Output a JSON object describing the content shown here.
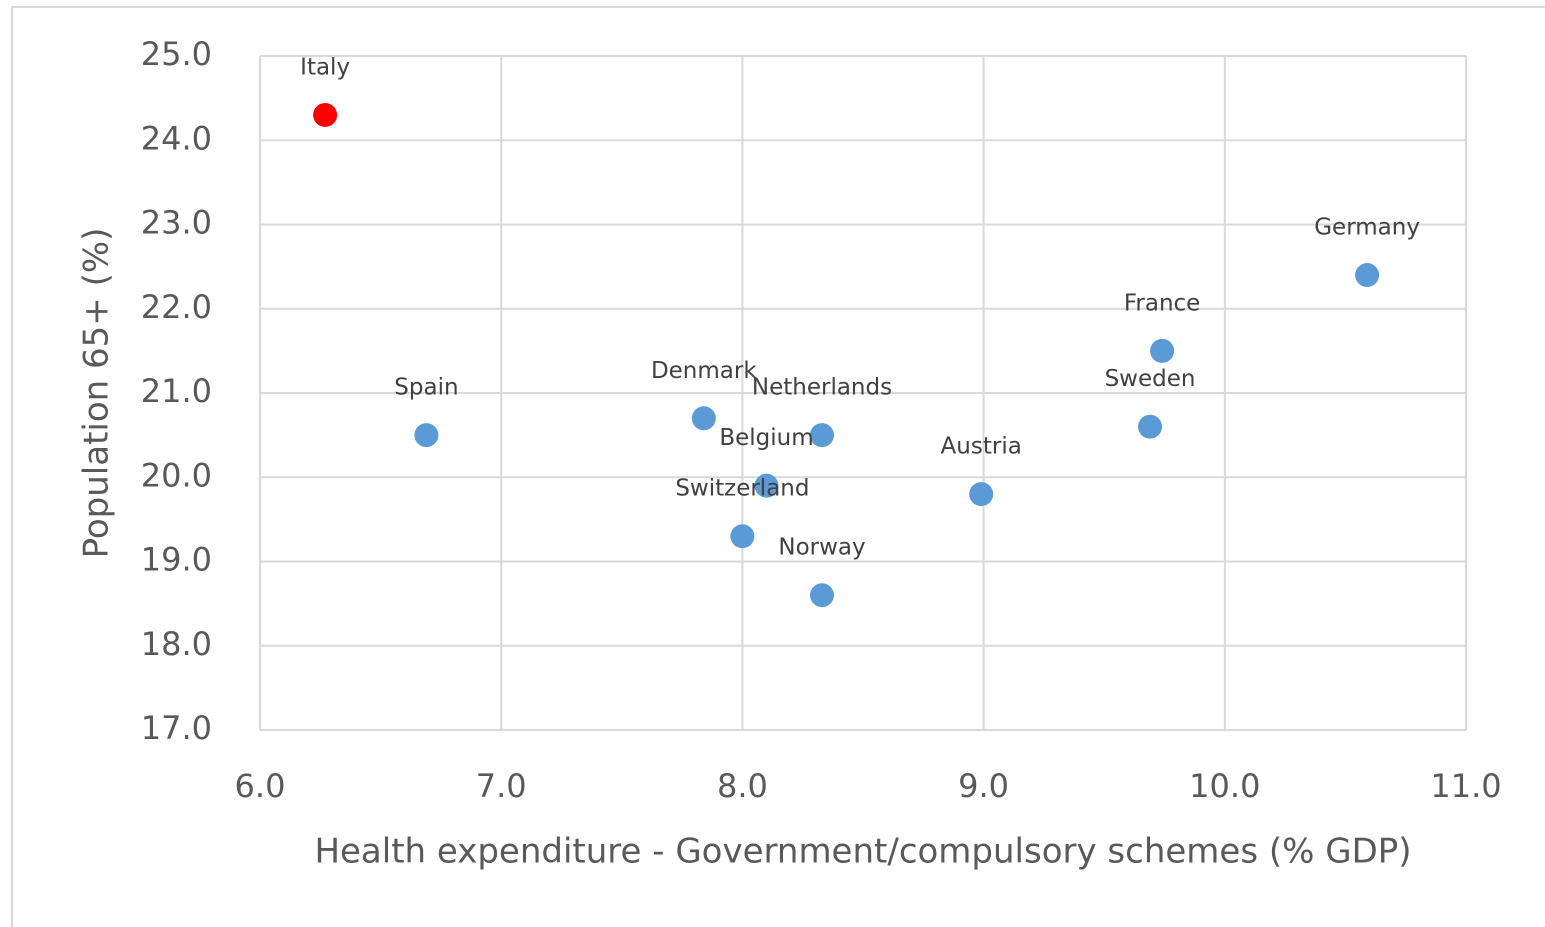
{
  "chart_data": {
    "type": "scatter",
    "xlabel": "Health expenditure - Government/compulsory schemes (% GDP)",
    "ylabel": "Population 65+ (%)",
    "labels": [
      "Italy",
      "Spain",
      "Denmark",
      "Netherlands",
      "Belgium",
      "Switzerland",
      "Norway",
      "Austria",
      "Sweden",
      "France",
      "Germany"
    ],
    "x": [
      6.27,
      6.69,
      7.84,
      8.33,
      8.1,
      8.0,
      8.33,
      8.99,
      9.69,
      9.74,
      10.59
    ],
    "values": [
      24.3,
      20.5,
      20.7,
      20.5,
      19.9,
      19.3,
      18.6,
      19.8,
      20.6,
      21.5,
      22.4
    ],
    "colors": [
      "#ff0000",
      "#5b9bd5",
      "#5b9bd5",
      "#5b9bd5",
      "#5b9bd5",
      "#5b9bd5",
      "#5b9bd5",
      "#5b9bd5",
      "#5b9bd5",
      "#5b9bd5",
      "#5b9bd5"
    ],
    "xlim": [
      6,
      11
    ],
    "xticks": [
      {
        "value": 6,
        "label": "6.0"
      },
      {
        "value": 7,
        "label": "7.0"
      },
      {
        "value": 8,
        "label": "8.0"
      },
      {
        "value": 9,
        "label": "9.0"
      },
      {
        "value": 10,
        "label": "10.0"
      },
      {
        "value": 11,
        "label": "11.0"
      }
    ],
    "ylim": [
      17,
      25
    ],
    "yticks": [
      {
        "value": 17,
        "label": "17.0"
      },
      {
        "value": 18,
        "label": "18.0"
      },
      {
        "value": 19,
        "label": "19.0"
      },
      {
        "value": 20,
        "label": "20.0"
      },
      {
        "value": 21,
        "label": "21.0"
      },
      {
        "value": 22,
        "label": "22.0"
      },
      {
        "value": 23,
        "label": "23.0"
      },
      {
        "value": 24,
        "label": "24.0"
      },
      {
        "value": 25,
        "label": "25.0"
      }
    ],
    "grid": true
  }
}
